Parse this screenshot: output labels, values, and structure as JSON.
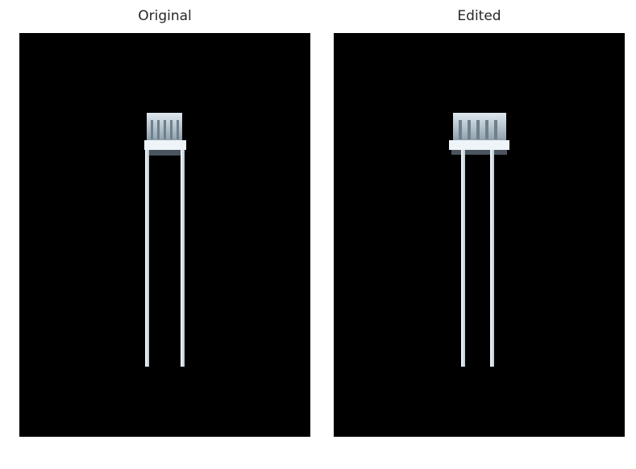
{
  "panels": {
    "left": {
      "title": "Original"
    },
    "right": {
      "title": "Edited"
    }
  },
  "colors": {
    "background": "#000000",
    "chair_light": "#e8f0f6",
    "chair_mid": "#a9bac7",
    "chair_shadow": "#4a5560"
  }
}
